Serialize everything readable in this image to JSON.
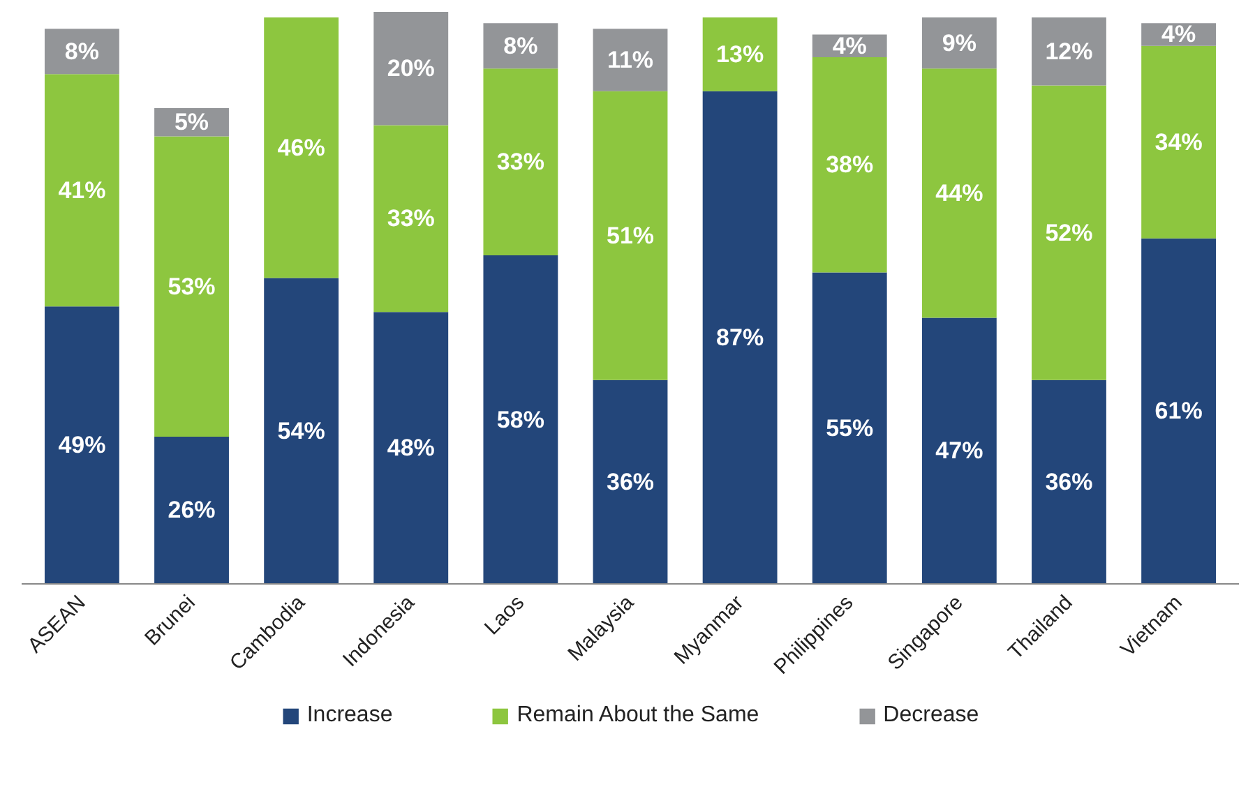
{
  "chart_data": {
    "type": "bar",
    "stacked": true,
    "legend": "bottom",
    "categories": [
      "ASEAN",
      "Brunei",
      "Cambodia",
      "Indonesia",
      "Laos",
      "Malaysia",
      "Myanmar",
      "Philippines",
      "Singapore",
      "Thailand",
      "Vietnam"
    ],
    "series": [
      {
        "name": "Increase",
        "color": "#23467a",
        "values": [
          49,
          26,
          54,
          48,
          58,
          36,
          87,
          55,
          47,
          36,
          61
        ],
        "value_labels": [
          "49%",
          "26%",
          "54%",
          "48%",
          "58%",
          "36%",
          "87%",
          "55%",
          "47%",
          "36%",
          "61%"
        ]
      },
      {
        "name": "Remain About the Same",
        "color": "#8dc63f",
        "values": [
          41,
          53,
          46,
          33,
          33,
          51,
          13,
          38,
          44,
          52,
          34
        ],
        "value_labels": [
          "41%",
          "53%",
          "46%",
          "33%",
          "33%",
          "51%",
          "13%",
          "38%",
          "44%",
          "52%",
          "34%"
        ]
      },
      {
        "name": "Decrease",
        "color": "#939598",
        "values": [
          8,
          5,
          null,
          20,
          8,
          11,
          null,
          4,
          9,
          12,
          4
        ],
        "value_labels": [
          "8%",
          "5%",
          null,
          "20%",
          "8%",
          "11%",
          null,
          "4%",
          "9%",
          "12%",
          "4%"
        ]
      }
    ]
  }
}
